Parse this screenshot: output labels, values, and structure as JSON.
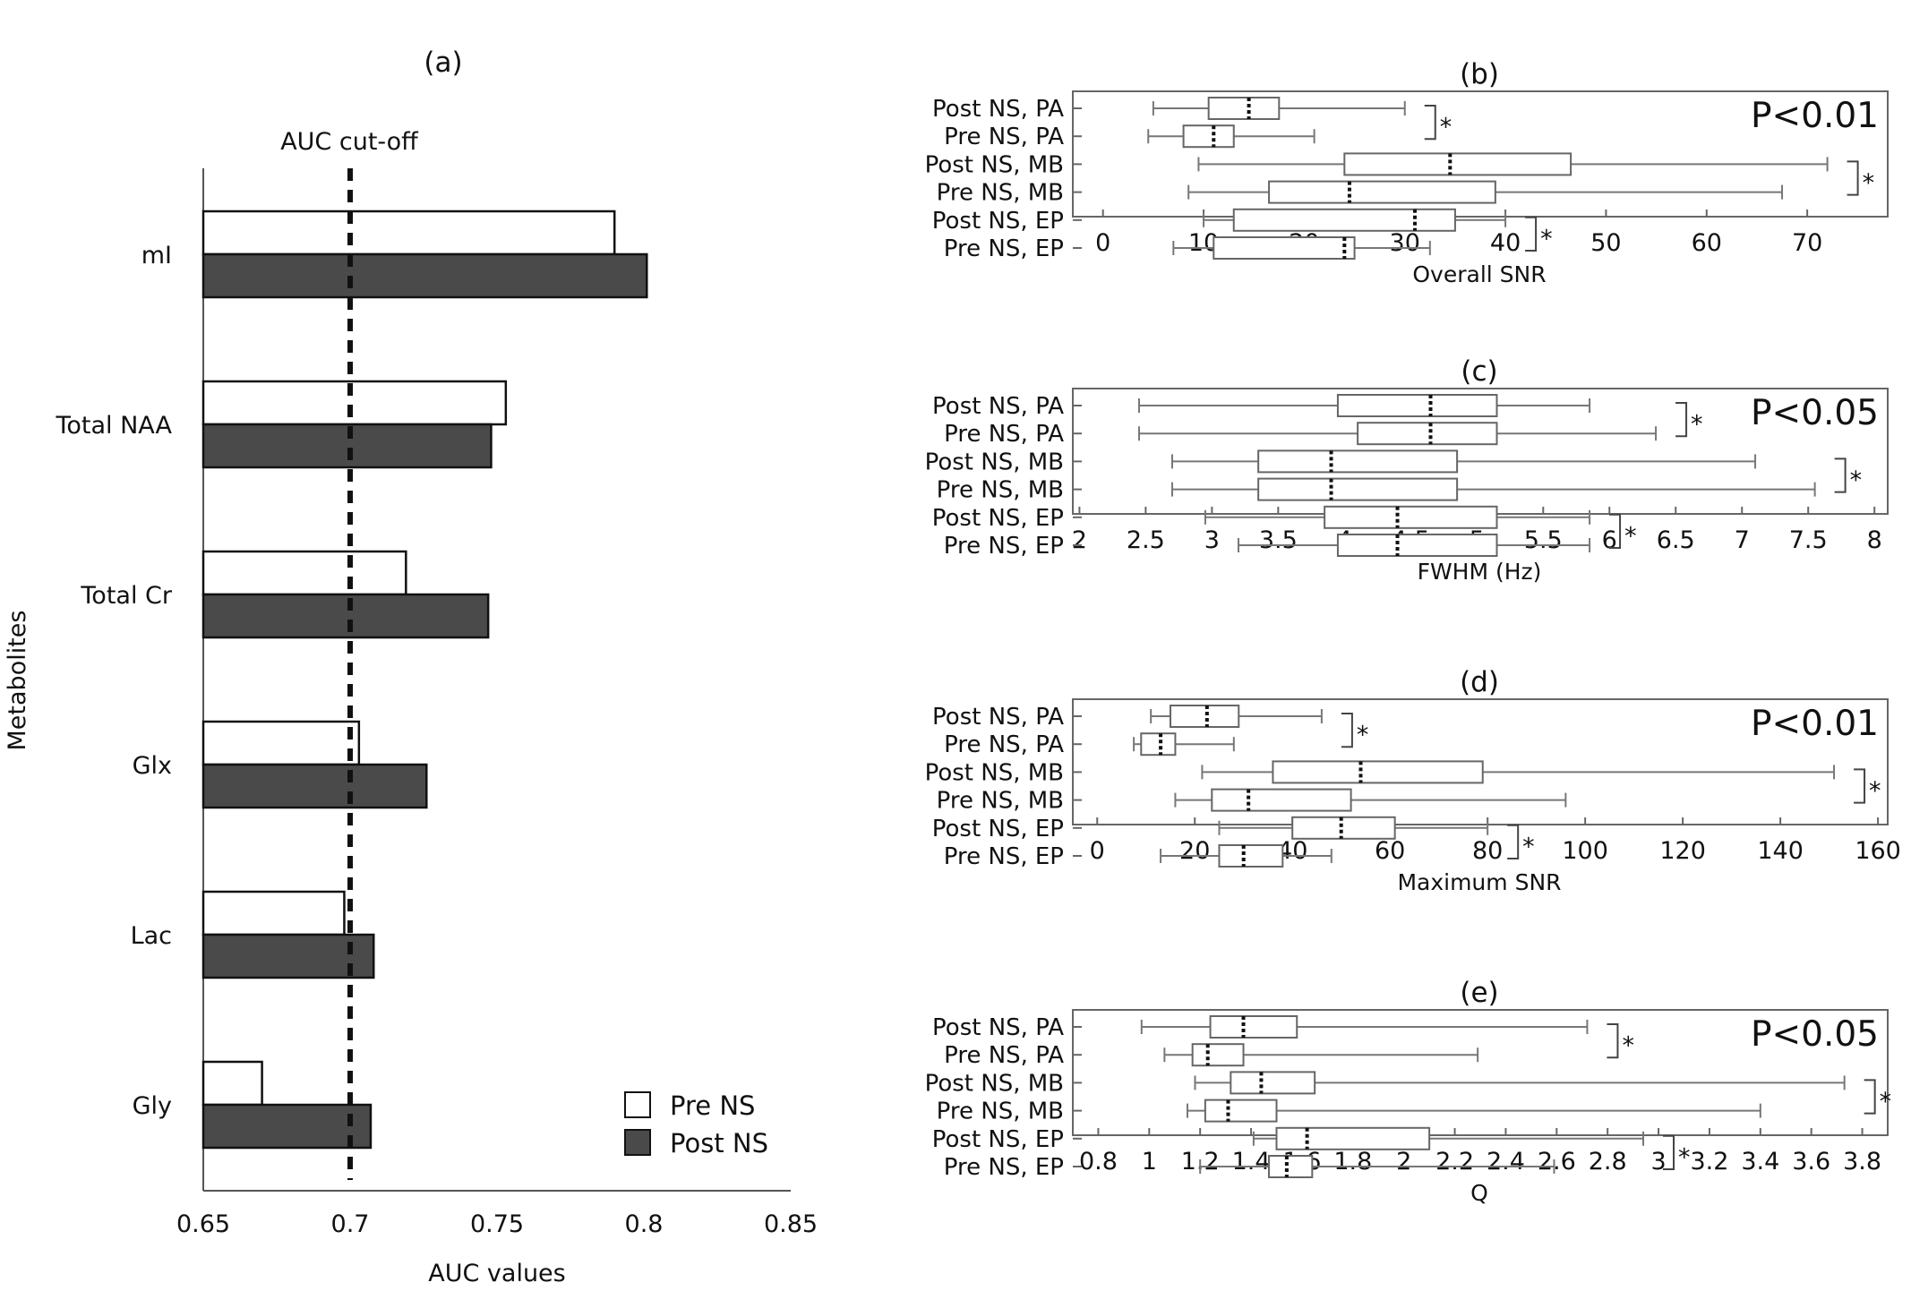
{
  "chart_data": [
    {
      "type": "bar",
      "orientation": "horizontal",
      "title": "(a)",
      "xlabel": "AUC values",
      "ylabel": "Metabolites",
      "xlim": [
        0.65,
        0.85
      ],
      "xticks": [
        "0.65",
        "0.7",
        "0.75",
        "0.8",
        "0.85"
      ],
      "categories": [
        "mI",
        "Total NAA",
        "Total Cr",
        "Glx",
        "Lac",
        "Gly"
      ],
      "series": [
        {
          "name": "Pre NS",
          "color": "#ffffff",
          "values": [
            0.79,
            0.753,
            0.719,
            0.703,
            0.698,
            0.67
          ]
        },
        {
          "name": "Post NS",
          "color": "#4a4a4a",
          "values": [
            0.801,
            0.748,
            0.747,
            0.726,
            0.708,
            0.707
          ]
        }
      ],
      "reference_line": {
        "value": 0.7,
        "label": "AUC cut-off"
      },
      "legend": "bottom-right"
    },
    {
      "type": "boxplot",
      "title": "(b)",
      "xlabel": "Overall SNR",
      "xlim": [
        -3,
        78
      ],
      "xticks": [
        "0",
        "10",
        "20",
        "30",
        "40",
        "50",
        "60",
        "70"
      ],
      "annotation": "P<0.01",
      "groups": [
        {
          "label": "Post NS, PA",
          "min": 5,
          "q1": 10.5,
          "median": 14.5,
          "q3": 17.5,
          "max": 30
        },
        {
          "label": "Pre NS, PA",
          "min": 4.5,
          "q1": 8,
          "median": 11,
          "q3": 13,
          "max": 21
        },
        {
          "label": "Post NS, MB",
          "min": 9.5,
          "q1": 24,
          "median": 34.5,
          "q3": 46.5,
          "max": 72
        },
        {
          "label": "Pre NS, MB",
          "min": 8.5,
          "q1": 16.5,
          "median": 24.5,
          "q3": 39,
          "max": 67.5
        },
        {
          "label": "Post NS, EP",
          "min": 10,
          "q1": 13,
          "median": 31,
          "q3": 35,
          "max": 40
        },
        {
          "label": "Pre NS, EP",
          "min": 7,
          "q1": 11,
          "median": 24,
          "q3": 25,
          "max": 32.5
        }
      ],
      "sig_pairs": [
        "*",
        "*",
        "*"
      ]
    },
    {
      "type": "boxplot",
      "title": "(c)",
      "xlabel": "FWHM (Hz)",
      "xlim": [
        1.95,
        8.1
      ],
      "xticks": [
        "2",
        "2.5",
        "3",
        "3.5",
        "4",
        "4.5",
        "5",
        "5.5",
        "6",
        "6.5",
        "7",
        "7.5",
        "8"
      ],
      "annotation": "P<0.05",
      "groups": [
        {
          "label": "Post NS, PA",
          "min": 2.45,
          "q1": 3.95,
          "median": 4.65,
          "q3": 5.15,
          "max": 5.85
        },
        {
          "label": "Pre NS, PA",
          "min": 2.45,
          "q1": 4.1,
          "median": 4.65,
          "q3": 5.15,
          "max": 6.35
        },
        {
          "label": "Post NS, MB",
          "min": 2.7,
          "q1": 3.35,
          "median": 3.9,
          "q3": 4.85,
          "max": 7.1
        },
        {
          "label": "Pre NS, MB",
          "min": 2.7,
          "q1": 3.35,
          "median": 3.9,
          "q3": 4.85,
          "max": 7.55
        },
        {
          "label": "Post NS, EP",
          "min": 2.95,
          "q1": 3.85,
          "median": 4.4,
          "q3": 5.15,
          "max": 5.85
        },
        {
          "label": "Pre NS, EP",
          "min": 3.2,
          "q1": 3.95,
          "median": 4.4,
          "q3": 5.15,
          "max": 5.85
        }
      ],
      "sig_pairs": [
        "*",
        "*",
        "*"
      ]
    },
    {
      "type": "boxplot",
      "title": "(d)",
      "xlabel": "Maximum SNR",
      "xlim": [
        -5,
        162
      ],
      "xticks": [
        "0",
        "20",
        "40",
        "60",
        "80",
        "100",
        "120",
        "140",
        "160"
      ],
      "annotation": "P<0.01",
      "groups": [
        {
          "label": "Post NS, PA",
          "min": 11,
          "q1": 15,
          "median": 22.5,
          "q3": 29,
          "max": 46
        },
        {
          "label": "Pre NS, PA",
          "min": 7.5,
          "q1": 9,
          "median": 13,
          "q3": 16,
          "max": 28
        },
        {
          "label": "Post NS, MB",
          "min": 21.5,
          "q1": 36,
          "median": 54,
          "q3": 79,
          "max": 151
        },
        {
          "label": "Pre NS, MB",
          "min": 16,
          "q1": 23.5,
          "median": 31,
          "q3": 52,
          "max": 96
        },
        {
          "label": "Post NS, EP",
          "min": 25,
          "q1": 40,
          "median": 50,
          "q3": 61,
          "max": 80
        },
        {
          "label": "Pre NS, EP",
          "min": 13,
          "q1": 25,
          "median": 30,
          "q3": 38,
          "max": 48
        }
      ],
      "sig_pairs": [
        "*",
        "*",
        "*"
      ]
    },
    {
      "type": "boxplot",
      "title": "(e)",
      "xlabel": "Q",
      "xlim": [
        0.7,
        3.9
      ],
      "xticks": [
        "0.8",
        "1",
        "1.2",
        "1.4",
        "1.6",
        "1.8",
        "2",
        "2.2",
        "2.4",
        "2.6",
        "2.8",
        "3",
        "3.2",
        "3.4",
        "3.6",
        "3.8"
      ],
      "annotation": "P<0.05",
      "groups": [
        {
          "label": "Post NS, PA",
          "min": 0.97,
          "q1": 1.24,
          "median": 1.37,
          "q3": 1.58,
          "max": 2.72
        },
        {
          "label": "Pre NS, PA",
          "min": 1.06,
          "q1": 1.17,
          "median": 1.23,
          "q3": 1.37,
          "max": 2.29
        },
        {
          "label": "Post NS, MB",
          "min": 1.18,
          "q1": 1.32,
          "median": 1.44,
          "q3": 1.65,
          "max": 3.73
        },
        {
          "label": "Pre NS, MB",
          "min": 1.15,
          "q1": 1.22,
          "median": 1.31,
          "q3": 1.5,
          "max": 3.4
        },
        {
          "label": "Post NS, EP",
          "min": 1.41,
          "q1": 1.5,
          "median": 1.62,
          "q3": 2.1,
          "max": 2.94
        },
        {
          "label": "Pre NS, EP",
          "min": 1.2,
          "q1": 1.47,
          "median": 1.54,
          "q3": 1.64,
          "max": 2.59
        }
      ],
      "sig_pairs": [
        "*",
        "*",
        "*"
      ]
    }
  ]
}
